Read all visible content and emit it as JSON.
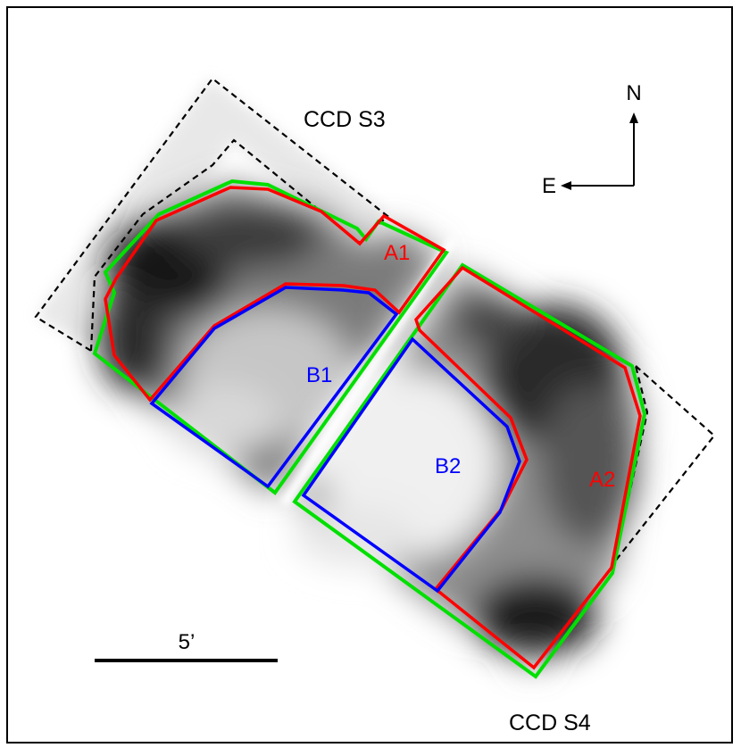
{
  "figure": {
    "ccd_labels": {
      "top": "CCD S3",
      "bottom": "CCD S4"
    },
    "compass": {
      "north": "N",
      "east": "E"
    },
    "region_labels": {
      "a1": "A1",
      "a2": "A2",
      "b1": "B1",
      "b2": "B2"
    },
    "scale_bar_label": "5’",
    "colors": {
      "red_regions": "#ff0000",
      "blue_regions": "#0000ff",
      "green_outline": "#00e000",
      "ccd_boundary": "#000000"
    }
  }
}
